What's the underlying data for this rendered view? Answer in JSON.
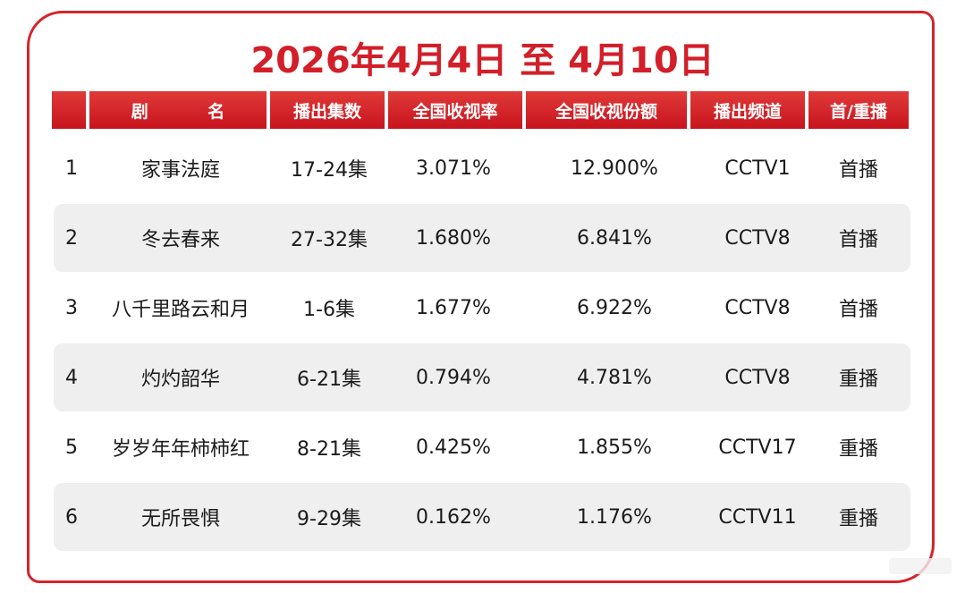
{
  "title": "2026年4月4日 至 4月10日",
  "headers": [
    "",
    "剧 名",
    "播出集数",
    "全国收视率",
    "全国收视份额",
    "播出频道",
    "首/重播"
  ],
  "rows": [
    {
      "rank": "1",
      "name": "家事法庭",
      "episodes": "17-24集",
      "rating": "3.071%",
      "share": "12.900%",
      "channel": "CCTV1",
      "type": "首播"
    },
    {
      "rank": "2",
      "name": "冬去春来",
      "episodes": "27-32集",
      "rating": "1.680%",
      "share": "6.841%",
      "channel": "CCTV8",
      "type": "首播"
    },
    {
      "rank": "3",
      "name": "八千里路云和月",
      "episodes": "1-6集",
      "rating": "1.677%",
      "share": "6.922%",
      "channel": "CCTV8",
      "type": "首播"
    },
    {
      "rank": "4",
      "name": "灼灼韶华",
      "episodes": "6-21集",
      "rating": "0.794%",
      "share": "4.781%",
      "channel": "CCTV8",
      "type": "重播"
    },
    {
      "rank": "5",
      "name": "岁岁年年柿柿红",
      "episodes": "8-21集",
      "rating": "0.425%",
      "share": "1.855%",
      "channel": "CCTV17",
      "type": "重播"
    },
    {
      "rank": "6",
      "name": "无所畏惧",
      "episodes": "9-29集",
      "rating": "0.162%",
      "share": "1.176%",
      "channel": "CCTV11",
      "type": "重播"
    }
  ]
}
